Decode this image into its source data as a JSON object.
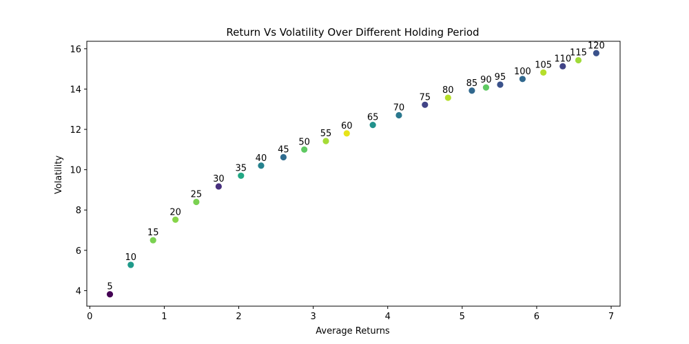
{
  "chart_data": {
    "type": "scatter",
    "title": "Return Vs Volatility Over Different Holding Period",
    "xlabel": "Average Returns",
    "ylabel": "Volatility",
    "xlim": [
      -0.04,
      7.12
    ],
    "ylim": [
      3.23,
      16.37
    ],
    "xticks": [
      0,
      1,
      2,
      3,
      4,
      5,
      6,
      7
    ],
    "yticks": [
      4,
      6,
      8,
      10,
      12,
      14,
      16
    ],
    "grid": false,
    "colormap": "viridis",
    "points": [
      {
        "label": "5",
        "x": 0.27,
        "y": 3.82,
        "color": "#440154"
      },
      {
        "label": "10",
        "x": 0.55,
        "y": 5.28,
        "color": "#1f9a8a"
      },
      {
        "label": "15",
        "x": 0.85,
        "y": 6.5,
        "color": "#7ad151"
      },
      {
        "label": "20",
        "x": 1.15,
        "y": 7.52,
        "color": "#86d549"
      },
      {
        "label": "25",
        "x": 1.43,
        "y": 8.4,
        "color": "#7ad151"
      },
      {
        "label": "30",
        "x": 1.73,
        "y": 9.17,
        "color": "#472f7d"
      },
      {
        "label": "35",
        "x": 2.03,
        "y": 9.7,
        "color": "#22a884"
      },
      {
        "label": "40",
        "x": 2.3,
        "y": 10.2,
        "color": "#26828e"
      },
      {
        "label": "45",
        "x": 2.6,
        "y": 10.62,
        "color": "#2f6b8e"
      },
      {
        "label": "50",
        "x": 2.88,
        "y": 11.0,
        "color": "#5ec962"
      },
      {
        "label": "55",
        "x": 3.17,
        "y": 11.42,
        "color": "#a5db36"
      },
      {
        "label": "60",
        "x": 3.45,
        "y": 11.8,
        "color": "#e7e419"
      },
      {
        "label": "65",
        "x": 3.8,
        "y": 12.22,
        "color": "#21918c"
      },
      {
        "label": "70",
        "x": 4.15,
        "y": 12.7,
        "color": "#2a788e"
      },
      {
        "label": "75",
        "x": 4.5,
        "y": 13.22,
        "color": "#414487"
      },
      {
        "label": "80",
        "x": 4.81,
        "y": 13.57,
        "color": "#b5de2b"
      },
      {
        "label": "85",
        "x": 5.13,
        "y": 13.92,
        "color": "#31688e"
      },
      {
        "label": "90",
        "x": 5.32,
        "y": 14.08,
        "color": "#5ec962"
      },
      {
        "label": "95",
        "x": 5.51,
        "y": 14.22,
        "color": "#3b528b"
      },
      {
        "label": "100",
        "x": 5.81,
        "y": 14.5,
        "color": "#31688e"
      },
      {
        "label": "105",
        "x": 6.09,
        "y": 14.82,
        "color": "#b5de2b"
      },
      {
        "label": "110",
        "x": 6.35,
        "y": 15.13,
        "color": "#414487"
      },
      {
        "label": "115",
        "x": 6.56,
        "y": 15.43,
        "color": "#a0da39"
      },
      {
        "label": "120",
        "x": 6.8,
        "y": 15.78,
        "color": "#3b528b"
      }
    ]
  }
}
